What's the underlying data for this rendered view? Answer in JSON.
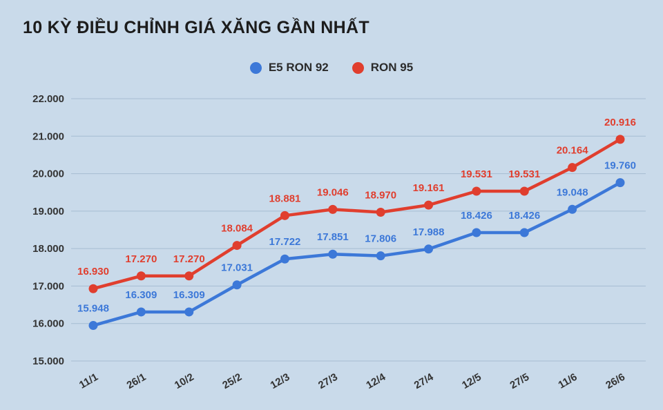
{
  "title": "10 KỲ ĐIỀU CHỈNH GIÁ XĂNG GẦN NHẤT",
  "legend": [
    {
      "label": "E5 RON 92",
      "color": "#3c78d8"
    },
    {
      "label": "RON 95",
      "color": "#e03e2e"
    }
  ],
  "colors": {
    "background": "#c9daea",
    "grid": "#a6bcd2",
    "axis_text": "#333333",
    "blue_series": "#3c78d8",
    "red_series": "#e03e2e"
  },
  "chart_data": {
    "type": "line",
    "categories": [
      "11/1",
      "26/1",
      "10/2",
      "25/2",
      "12/3",
      "27/3",
      "12/4",
      "27/4",
      "12/5",
      "27/5",
      "11/6",
      "26/6"
    ],
    "series": [
      {
        "name": "E5 RON 92",
        "color": "#3c78d8",
        "values": [
          15948,
          16309,
          16309,
          17031,
          17722,
          17851,
          17806,
          17988,
          18426,
          18426,
          19048,
          19760
        ],
        "labels": [
          "15.948",
          "16.309",
          "16.309",
          "17.031",
          "17.722",
          "17.851",
          "17.806",
          "17.988",
          "18.426",
          "18.426",
          "19.048",
          "19.760"
        ]
      },
      {
        "name": "RON 95",
        "color": "#e03e2e",
        "values": [
          16930,
          17270,
          17270,
          18084,
          18881,
          19046,
          18970,
          19161,
          19531,
          19531,
          20164,
          20916
        ],
        "labels": [
          "16.930",
          "17.270",
          "17.270",
          "18.084",
          "18.881",
          "19.046",
          "18.970",
          "19.161",
          "19.531",
          "19.531",
          "20.164",
          "20.916"
        ]
      }
    ],
    "title": "10 KỲ ĐIỀU CHỈNH GIÁ XĂNG GẦN NHẤT",
    "xlabel": "",
    "ylabel": "",
    "ylim": [
      15000,
      22000
    ],
    "ytick_step": 1000,
    "ytick_labels": [
      "15.000",
      "16.000",
      "17.000",
      "18.000",
      "19.000",
      "20.000",
      "21.000",
      "22.000"
    ],
    "grid": true,
    "legend_position": "top"
  }
}
